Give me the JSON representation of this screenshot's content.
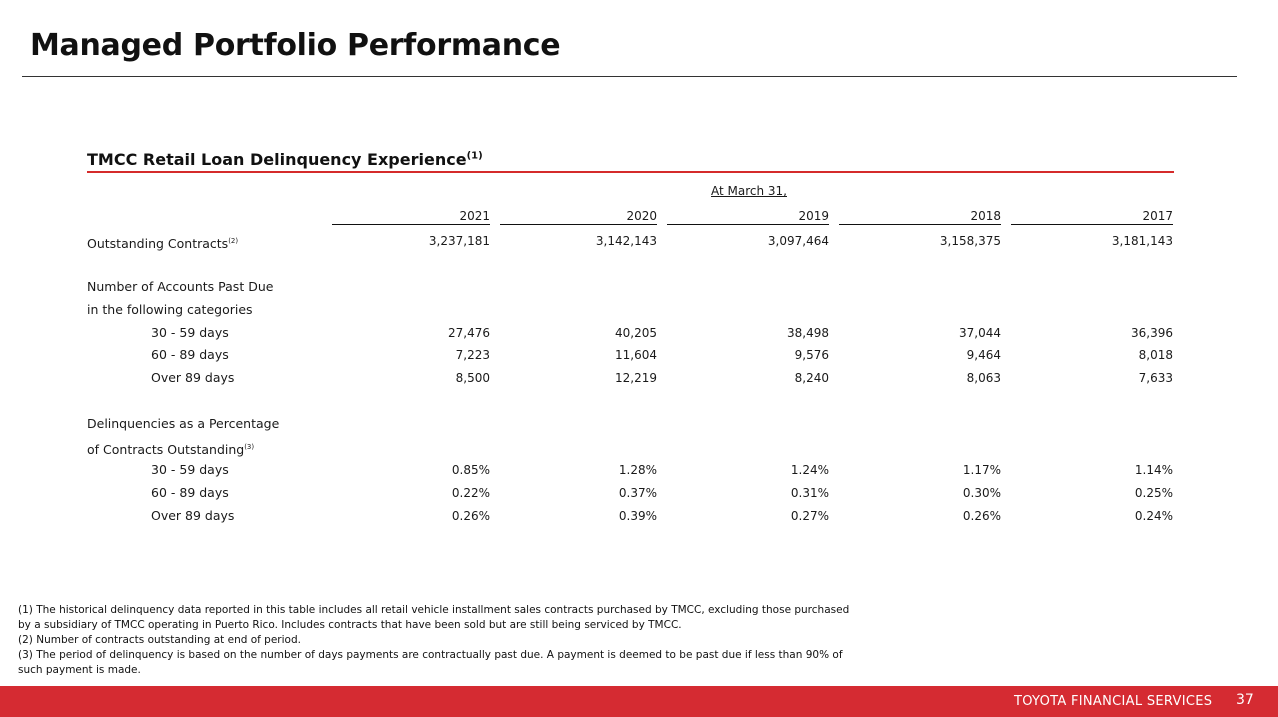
{
  "header": {
    "title": "Managed Portfolio Performance"
  },
  "section": {
    "title": "TMCC Retail Loan Delinquency Experience",
    "title_note": "(1)",
    "column_group": "At March 31,",
    "years": [
      "2021",
      "2020",
      "2019",
      "2018",
      "2017"
    ]
  },
  "rows": {
    "outstanding": {
      "label": "Outstanding Contracts",
      "note": "(2)",
      "values": [
        "3,237,181",
        "3,142,143",
        "3,097,464",
        "3,158,375",
        "3,181,143"
      ]
    },
    "accounts_heading_1": "Number of Accounts Past Due",
    "accounts_heading_2": "in the following categories",
    "acc_30": {
      "label": "30 - 59 days",
      "values": [
        "27,476",
        "40,205",
        "38,498",
        "37,044",
        "36,396"
      ]
    },
    "acc_60": {
      "label": "60 - 89 days",
      "values": [
        "7,223",
        "11,604",
        "9,576",
        "9,464",
        "8,018"
      ]
    },
    "acc_89": {
      "label": "Over 89 days",
      "values": [
        "8,500",
        "12,219",
        "8,240",
        "8,063",
        "7,633"
      ]
    },
    "pct_heading_1": "Delinquencies as a Percentage",
    "pct_heading_2": "of Contracts Outstanding",
    "pct_heading_note": "(3)",
    "pct_30": {
      "label": "30 - 59 days",
      "values": [
        "0.85%",
        "1.28%",
        "1.24%",
        "1.17%",
        "1.14%"
      ]
    },
    "pct_60": {
      "label": "60 - 89 days",
      "values": [
        "0.22%",
        "0.37%",
        "0.31%",
        "0.30%",
        "0.25%"
      ]
    },
    "pct_89": {
      "label": "Over 89 days",
      "values": [
        "0.26%",
        "0.39%",
        "0.27%",
        "0.26%",
        "0.24%"
      ]
    }
  },
  "footnotes": {
    "n1a": "(1) The historical delinquency data reported in this table includes all retail vehicle installment sales contracts purchased by TMCC, excluding those purchased",
    "n1b": "by a subsidiary of TMCC operating in Puerto Rico.  Includes contracts that have been sold but are still being serviced by TMCC.",
    "n2": "(2) Number of contracts outstanding at end of period.",
    "n3a": "(3) The period of delinquency is based on the number of days payments are contractually past due.  A payment is deemed to be past due if less than 90% of",
    "n3b": "such payment is made."
  },
  "footer": {
    "brand": "TOYOTA FINANCIAL SERVICES",
    "page_number": "37"
  }
}
